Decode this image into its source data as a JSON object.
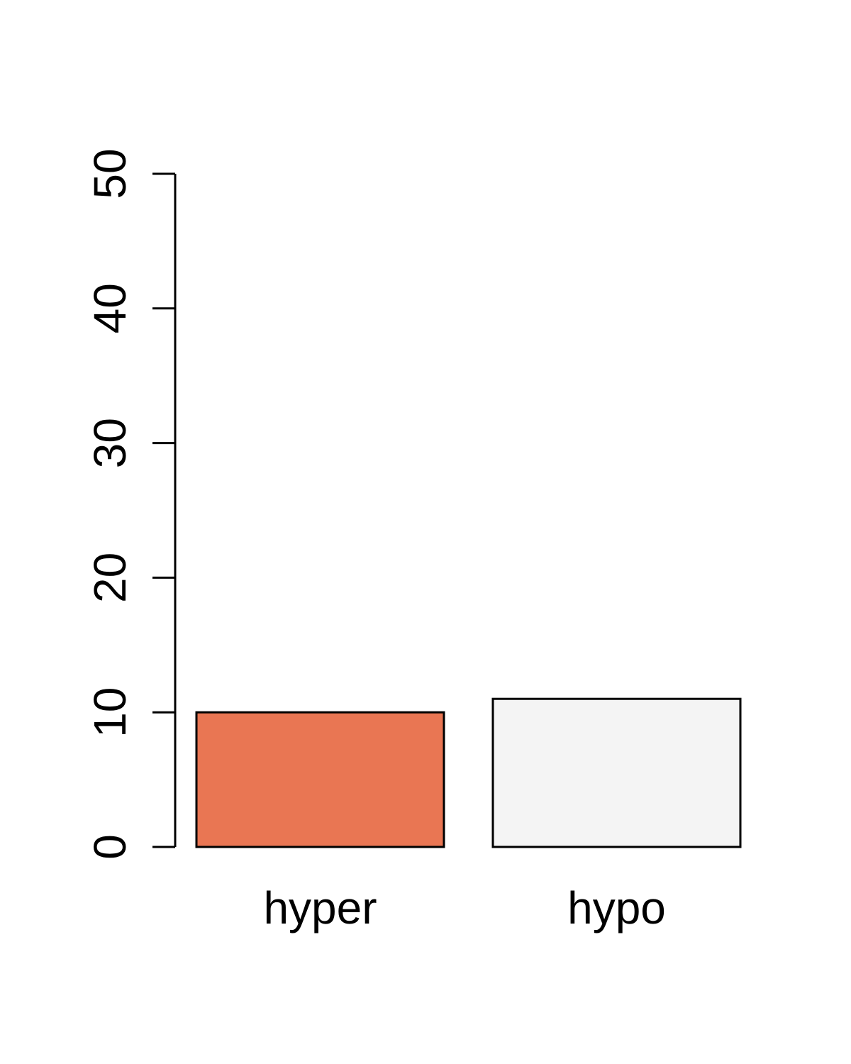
{
  "chart_data": {
    "type": "bar",
    "title": "",
    "xlabel": "",
    "ylabel": "",
    "categories": [
      "hyper",
      "hypo"
    ],
    "values": [
      10,
      11
    ],
    "bar_colors": [
      "#e97653",
      "#f4f4f4"
    ],
    "bar_outline_color": "#000000",
    "ylim": [
      0,
      50
    ],
    "y_ticks": [
      0,
      10,
      20,
      30,
      40,
      50
    ],
    "y_tick_labels": [
      "0",
      "10",
      "20",
      "30",
      "40",
      "50"
    ],
    "y_tick_label_orientation": "rotated-vertical",
    "grid": false,
    "legend": "none"
  }
}
